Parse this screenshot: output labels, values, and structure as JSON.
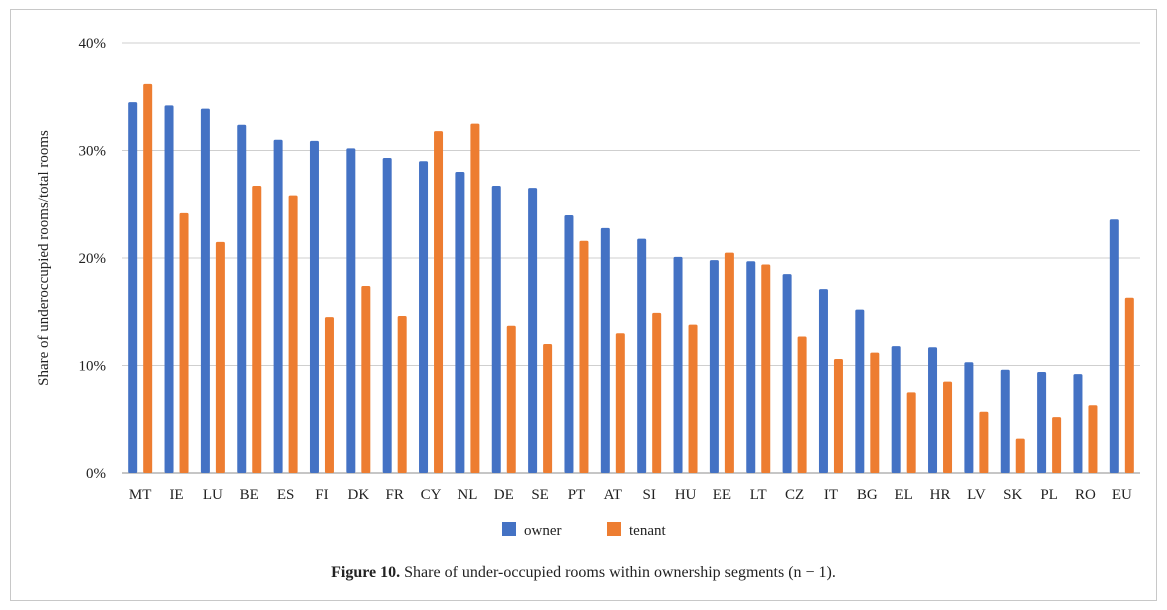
{
  "chart_data": {
    "type": "bar",
    "ylabel": "Share of underoccupied rooms/total rooms",
    "ylim": [
      0,
      40
    ],
    "yticks": [
      0,
      10,
      20,
      30,
      40
    ],
    "ytick_labels": [
      "0%",
      "10%",
      "20%",
      "30%",
      "40%"
    ],
    "grid": true,
    "legend_position": "bottom",
    "categories": [
      "MT",
      "IE",
      "LU",
      "BE",
      "ES",
      "FI",
      "DK",
      "FR",
      "CY",
      "NL",
      "DE",
      "SE",
      "PT",
      "AT",
      "SI",
      "HU",
      "EE",
      "LT",
      "CZ",
      "IT",
      "BG",
      "EL",
      "HR",
      "LV",
      "SK",
      "PL",
      "RO",
      "EU"
    ],
    "series": [
      {
        "name": "owner",
        "color": "#4472C4",
        "values": [
          34.5,
          34.2,
          33.9,
          32.4,
          31.0,
          30.9,
          30.2,
          29.3,
          29.0,
          28.0,
          26.7,
          26.5,
          24.0,
          22.8,
          21.8,
          20.1,
          19.8,
          19.7,
          18.5,
          17.1,
          15.2,
          11.8,
          11.7,
          10.3,
          9.6,
          9.4,
          9.2,
          23.6
        ]
      },
      {
        "name": "tenant",
        "color": "#ED7D31",
        "values": [
          36.2,
          24.2,
          21.5,
          26.7,
          25.8,
          14.5,
          17.4,
          14.6,
          31.8,
          32.5,
          13.7,
          12.0,
          21.6,
          13.0,
          14.9,
          13.8,
          20.5,
          19.4,
          12.7,
          10.6,
          11.2,
          7.5,
          8.5,
          5.7,
          3.2,
          5.2,
          6.3,
          16.3
        ]
      }
    ]
  },
  "caption": {
    "label": "Figure 10.",
    "text": " Share of under-occupied rooms within ownership segments (n − 1)."
  }
}
